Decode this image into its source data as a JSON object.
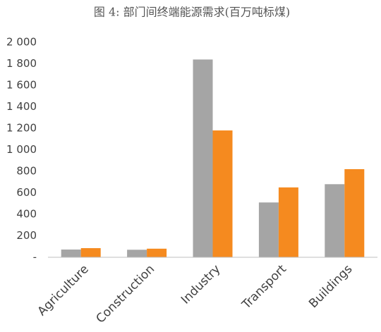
{
  "chart_data": {
    "type": "bar",
    "title": "图 4: 部门间终端能源需求(百万吨标煤)",
    "categories": [
      "Agriculture",
      "Construction",
      "Industry",
      "Transport",
      "Buildings"
    ],
    "series": [
      {
        "color": "#a5a5a5",
        "values": [
          72,
          70,
          1840,
          510,
          680
        ]
      },
      {
        "color": "#f58a1f",
        "values": [
          85,
          80,
          1180,
          650,
          820
        ]
      }
    ],
    "ylim": [
      0,
      2000
    ],
    "yticks": [
      {
        "value": 0,
        "label": "-"
      },
      200,
      400,
      600,
      800,
      {
        "value": 1000,
        "label": "1 000"
      },
      {
        "value": 1200,
        "label": "1 200"
      },
      {
        "value": 1400,
        "label": "1 400"
      },
      {
        "value": 1600,
        "label": "1 600"
      },
      {
        "value": 1800,
        "label": "1 800"
      },
      {
        "value": 2000,
        "label": "2 000"
      }
    ],
    "grid": false
  }
}
